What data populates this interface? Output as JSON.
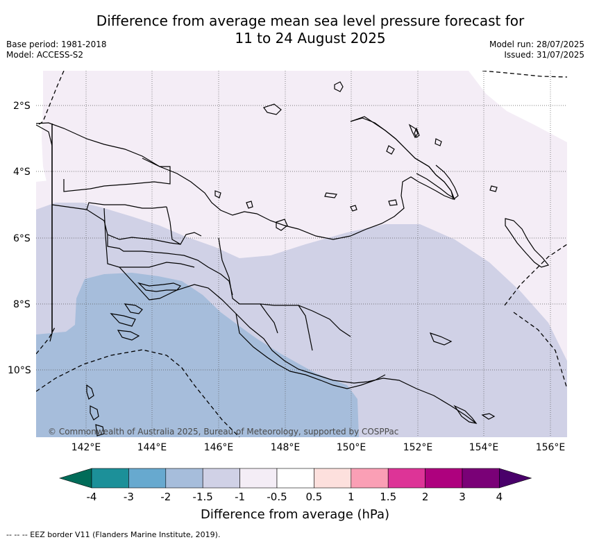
{
  "header": {
    "title_line1": "Difference from average mean sea level pressure forecast for",
    "title_line2": "11 to 24 August 2025",
    "base_period": "Base period: 1981-2018",
    "model": "Model: ACCESS-S2",
    "model_run": "Model run: 28/07/2025",
    "issued": "Issued: 31/07/2025"
  },
  "map": {
    "copyright": "© Commonwealth of Australia 2025, Bureau of Meteorology, supported by COSPPac",
    "lat_labels": [
      "2°S",
      "4°S",
      "6°S",
      "8°S",
      "10°S"
    ],
    "lon_labels": [
      "142°E",
      "144°E",
      "146°E",
      "148°E",
      "150°E",
      "152°E",
      "154°E",
      "156°E"
    ],
    "colors": {
      "band_neg1_to_neg0_5": "#f4edf6",
      "band_neg1_5_to_neg1": "#d0d1e6",
      "band_neg2_to_neg1_5": "#a6bddb",
      "land_outline": "#000000"
    }
  },
  "colorbar": {
    "ticks": [
      "-4",
      "-3",
      "-2",
      "-1.5",
      "-1",
      "-0.5",
      "0.5",
      "1",
      "1.5",
      "2",
      "3",
      "4"
    ],
    "colors": [
      "#016c59",
      "#1c9099",
      "#67a9cf",
      "#a6bddb",
      "#d0d1e6",
      "#f4edf6",
      "#ffffff",
      "#fde0dd",
      "#fa9fb5",
      "#dd3497",
      "#ae017e",
      "#7a0177",
      "#49006a"
    ],
    "title": "Difference from average (hPa)"
  },
  "footnote": "-- -- -- EEZ border V11 (Flanders Marine Institute, 2019)."
}
